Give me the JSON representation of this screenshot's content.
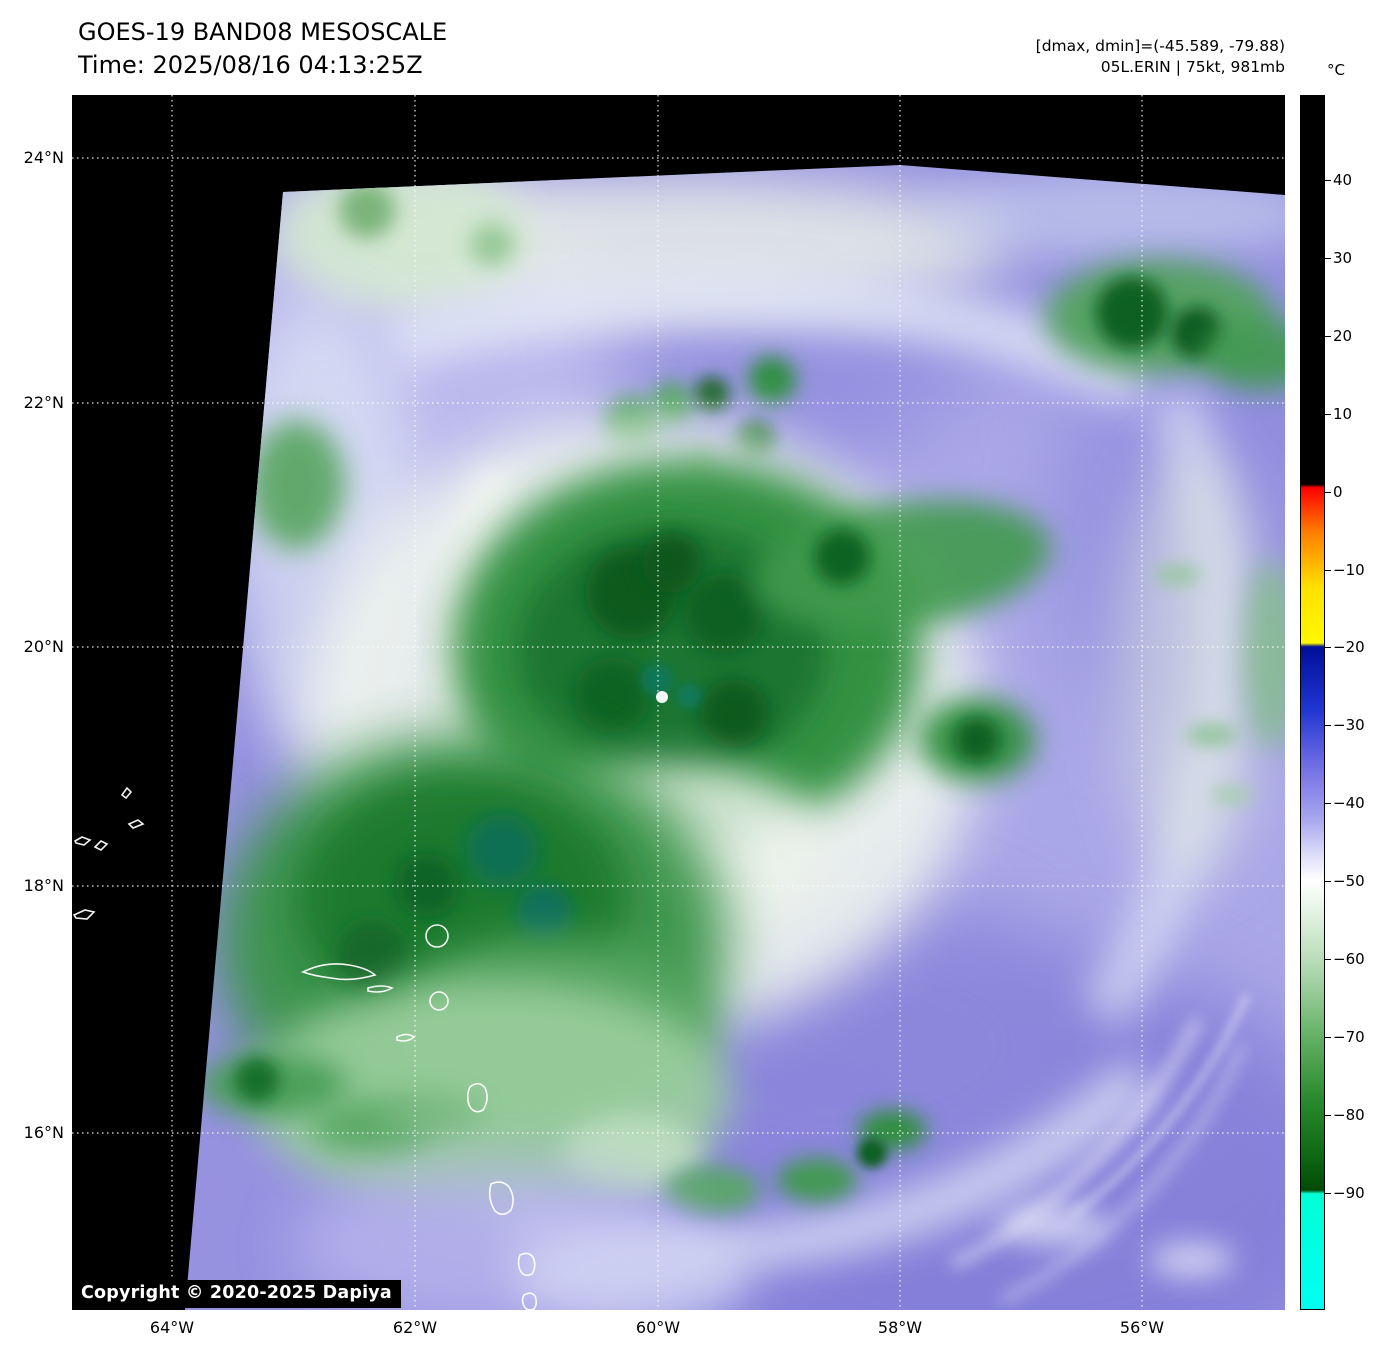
{
  "header": {
    "title": "GOES-19 BAND08 MESOSCALE",
    "time": "Time: 2025/08/16 04:13:25Z",
    "dmax_dmin": "[dmax, dmin]=(-45.589, -79.88)",
    "storm": "05L.ERIN | 75kt, 981mb"
  },
  "map": {
    "copyright": "Copyright © 2020-2025 Dapiya",
    "lat_ticks": [
      "24°N",
      "22°N",
      "20°N",
      "18°N",
      "16°N"
    ],
    "lon_ticks": [
      "64°W",
      "62°W",
      "60°W",
      "58°W",
      "56°W"
    ]
  },
  "colorbar": {
    "unit": "°C",
    "ticks": [
      "40",
      "30",
      "20",
      "10",
      "0",
      "−10",
      "−20",
      "−30",
      "−40",
      "−50",
      "−60",
      "−70",
      "−80",
      "−90"
    ],
    "stops": [
      {
        "p": 0,
        "c": "#000000"
      },
      {
        "p": 32.0,
        "c": "#000000"
      },
      {
        "p": 32.3,
        "c": "#ff0000"
      },
      {
        "p": 36.0,
        "c": "#ff7f00"
      },
      {
        "p": 40.5,
        "c": "#ffe000"
      },
      {
        "p": 45.1,
        "c": "#fff800"
      },
      {
        "p": 45.4,
        "c": "#000f99"
      },
      {
        "p": 50.6,
        "c": "#2036d2"
      },
      {
        "p": 55.1,
        "c": "#6f6ce4"
      },
      {
        "p": 59.6,
        "c": "#a8a6ee"
      },
      {
        "p": 62.8,
        "c": "#e2e1fa"
      },
      {
        "p": 64.7,
        "c": "#ffffff"
      },
      {
        "p": 68.0,
        "c": "#dcefdc"
      },
      {
        "p": 72.4,
        "c": "#abd6ab"
      },
      {
        "p": 77.6,
        "c": "#63b063"
      },
      {
        "p": 82.7,
        "c": "#2a8a2e"
      },
      {
        "p": 87.2,
        "c": "#0f6a14"
      },
      {
        "p": 90.2,
        "c": "#024a06"
      },
      {
        "p": 90.5,
        "c": "#00ffd5"
      },
      {
        "p": 100,
        "c": "#00fff2"
      }
    ]
  },
  "colors": {
    "map_background": "#000000",
    "warm_ocean_tone": "#9692e0",
    "coldest_cloud_tops": "#0b5a1e",
    "gridline": "#ffffff"
  }
}
